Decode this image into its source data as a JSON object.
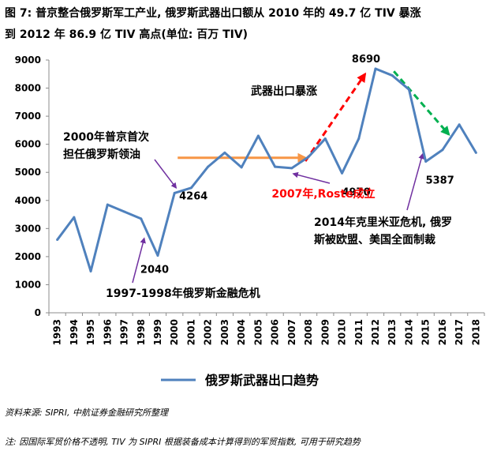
{
  "title_lines": [
    "图 7: 普京整合俄罗斯军工产业, 俄罗斯武器出口额从 2010 年的 49.7 亿 TIV 暴涨",
    "到 2012 年 86.9 亿 TIV 高点(单位: 百万 TIV)"
  ],
  "source_text": "资料来源: SIPRI, 中航证券金融研究所整理",
  "note_text": "注: 因国际军贸价格不透明, TIV 为 SIPRI 根据装备成本计算得到的军贸指数, 可用于研究趋势",
  "colors": {
    "series": "#4f81bd",
    "orange_arrow": "#f79646",
    "red_arrow": "#ff0000",
    "green_arrow": "#00b050",
    "purple_arrow": "#7030a0",
    "red_text": "#ff0000"
  },
  "chart_data": {
    "type": "line",
    "title": "",
    "xlabel": "",
    "ylabel": "",
    "ylim": [
      0,
      9000
    ],
    "yticks": [
      0,
      1000,
      2000,
      3000,
      4000,
      5000,
      6000,
      7000,
      8000,
      9000
    ],
    "grid": false,
    "legend_position": "bottom",
    "x": [
      "1993",
      "1994",
      "1995",
      "1996",
      "1997",
      "1998",
      "1999",
      "2000",
      "2001",
      "2002",
      "2003",
      "2004",
      "2005",
      "2006",
      "2007",
      "2008",
      "2009",
      "2010",
      "2011",
      "2012",
      "2013",
      "2014",
      "2015",
      "2016",
      "2017",
      "2018"
    ],
    "series": [
      {
        "name": "俄罗斯武器出口趋势",
        "values": [
          2600,
          3400,
          1480,
          3850,
          3600,
          3350,
          2040,
          4264,
          4450,
          5200,
          5700,
          5180,
          6300,
          5200,
          5150,
          5550,
          6200,
          4970,
          6200,
          8690,
          8450,
          7950,
          5387,
          5800,
          6700,
          5700
        ]
      }
    ],
    "data_labels": [
      {
        "year": "1999",
        "text": "2040"
      },
      {
        "year": "2000",
        "text": "4264"
      },
      {
        "year": "2010",
        "text": "4970"
      },
      {
        "year": "2012",
        "text": "8690"
      },
      {
        "year": "2015",
        "text": "5387"
      }
    ],
    "annotations": [
      {
        "text": "2000年普京首次",
        "color": "#000000"
      },
      {
        "text": "担任俄罗斯领油",
        "color": "#000000"
      },
      {
        "text": "武器出口暴涨",
        "color": "#000000"
      },
      {
        "text": "2007年,Roste成立",
        "color": "#ff0000"
      },
      {
        "text": "2014年克里米亚危机, 俄罗",
        "color": "#000000"
      },
      {
        "text": "斯被欧盟、美国全面制裁",
        "color": "#000000"
      },
      {
        "text": "1997-1998年俄罗斯金融危机",
        "color": "#000000"
      }
    ]
  }
}
